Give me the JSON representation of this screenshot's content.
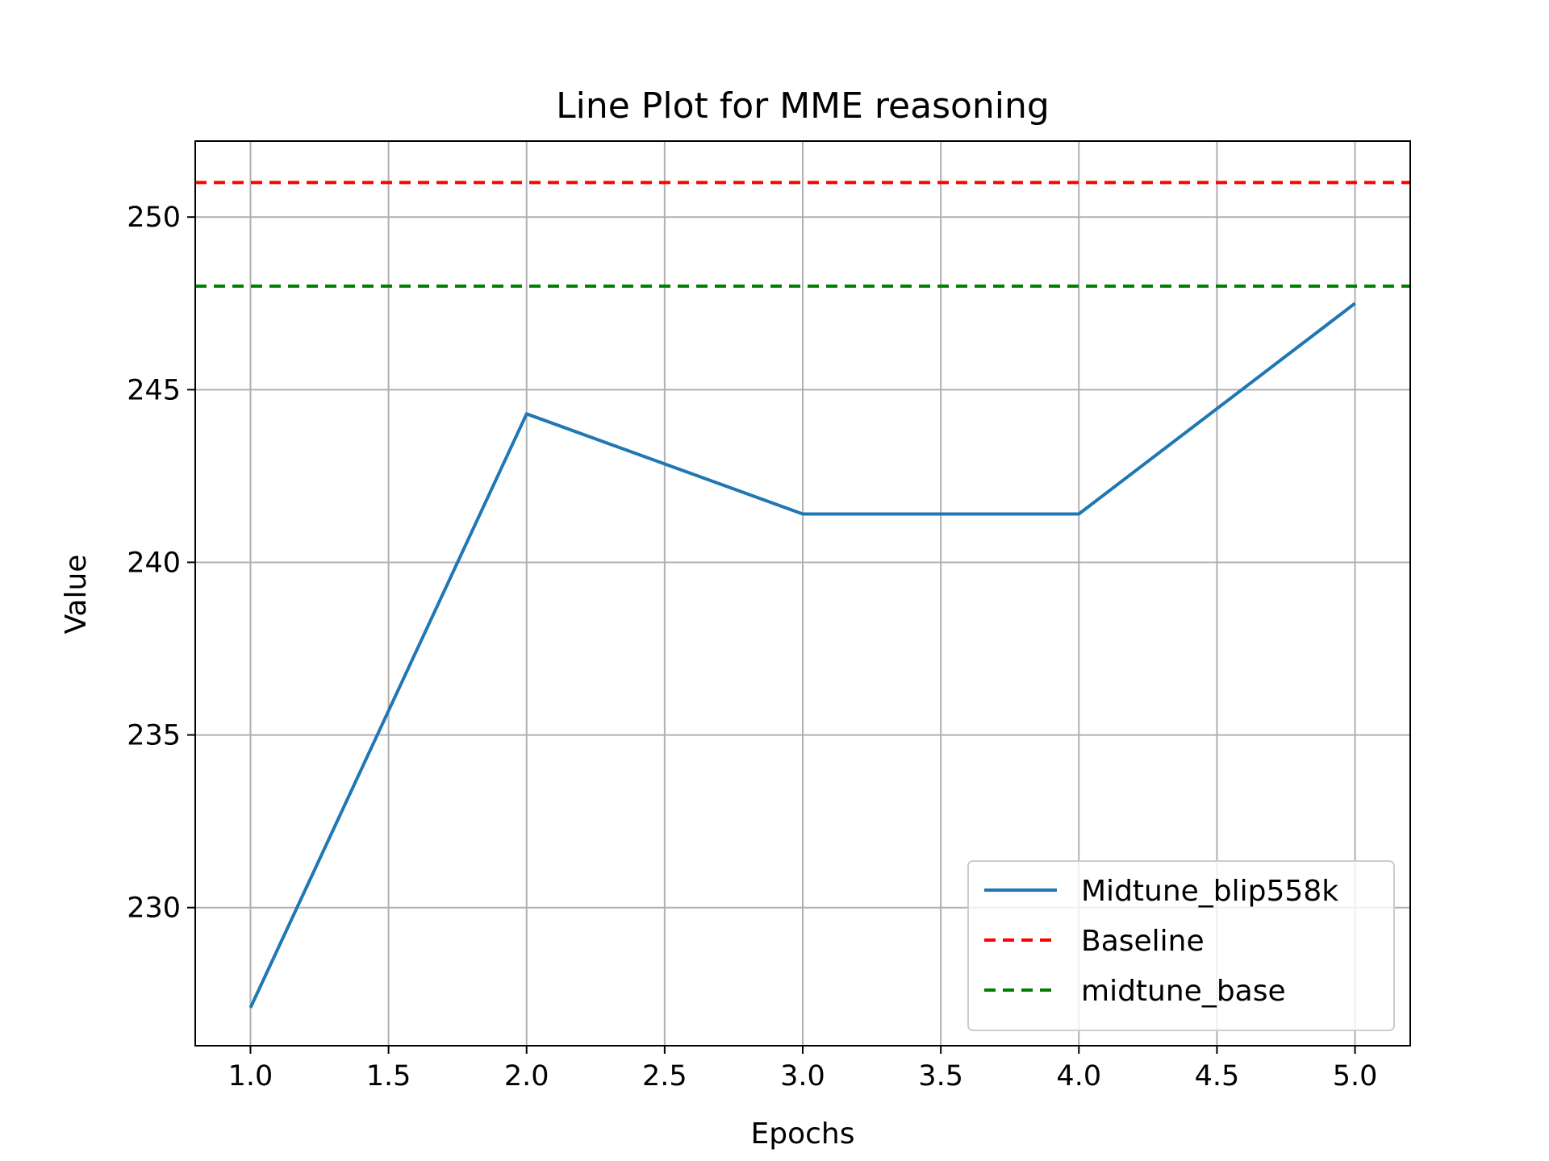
{
  "chart_data": {
    "type": "line",
    "title": "Line Plot for MME reasoning",
    "xlabel": "Epochs",
    "ylabel": "Value",
    "xlim": [
      0.8,
      5.2
    ],
    "ylim": [
      226.0,
      252.2
    ],
    "x_ticks": [
      1.0,
      1.5,
      2.0,
      2.5,
      3.0,
      3.5,
      4.0,
      4.5,
      5.0
    ],
    "x_tick_labels": [
      "1.0",
      "1.5",
      "2.0",
      "2.5",
      "3.0",
      "3.5",
      "4.0",
      "4.5",
      "5.0"
    ],
    "y_ticks": [
      230,
      235,
      240,
      245,
      250
    ],
    "y_tick_labels": [
      "230",
      "235",
      "240",
      "245",
      "250"
    ],
    "grid": true,
    "legend_position": "lower-right",
    "series": [
      {
        "name": "Midtune_blip558k",
        "style": "solid",
        "color": "#1f77b4",
        "x": [
          1.0,
          2.0,
          3.0,
          4.0,
          5.0
        ],
        "y": [
          227.1,
          244.3,
          241.4,
          241.4,
          247.5
        ]
      }
    ],
    "reference_lines": [
      {
        "name": "Baseline",
        "style": "dashed",
        "color": "#ff0000",
        "y": 251.0
      },
      {
        "name": "midtune_base",
        "style": "dashed",
        "color": "#008000",
        "y": 248.0
      }
    ]
  }
}
